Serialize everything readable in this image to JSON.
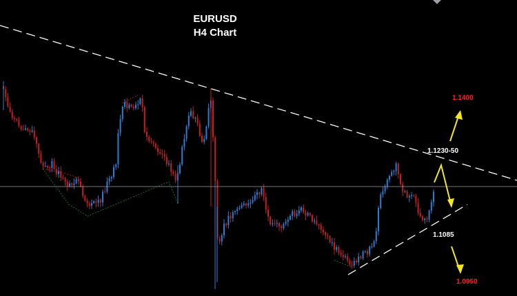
{
  "chart_data": {
    "type": "candlestick",
    "title": "EURUSD",
    "subtitle": "H4 Chart",
    "symbol": "EURUSD",
    "timeframe": "H4",
    "background": "#000000",
    "colors": {
      "bull": "#2a7fd4",
      "bear": "#c81e1e",
      "trendline": "#ffffff",
      "current_price_line": "#9aa0a6",
      "projection_arrow": "#f5e71e",
      "target_label": "#ff2020",
      "level_label": "#ffffff",
      "swing_line": "#1f8a2a"
    },
    "levels": [
      {
        "label": "1.1400",
        "price": 1.14,
        "color": "#ff2020"
      },
      {
        "label": "1.1230-50",
        "price": 1.124,
        "color": "#ffffff"
      },
      {
        "label": "1.1085",
        "price": 1.1085,
        "color": "#ffffff"
      },
      {
        "label": "1.0950",
        "price": 1.095,
        "color": "#ff2020"
      }
    ],
    "current_price": 1.1155,
    "annotations": [
      {
        "type": "descending-trendline",
        "style": "dashed",
        "color": "#ffffff"
      },
      {
        "type": "ascending-support-line",
        "style": "dashed",
        "color": "#ffffff"
      },
      {
        "type": "projection-arrows",
        "color": "#f5e71e",
        "scenarios": [
          "bullish breakout to 1.1400",
          "bearish breakdown to 1.0950"
        ]
      }
    ],
    "grid": false,
    "legend": "none"
  }
}
